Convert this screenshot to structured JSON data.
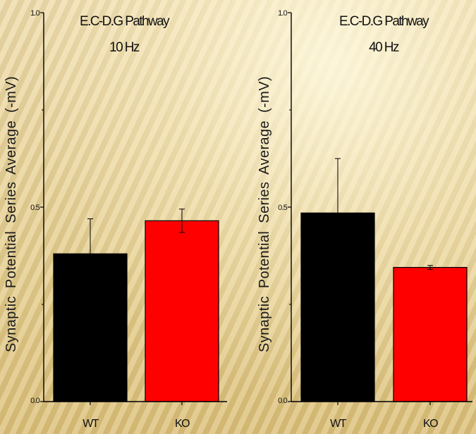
{
  "chart_data": [
    {
      "type": "bar",
      "title_lines": [
        "E.C-D.G Pathway",
        "10 Hz"
      ],
      "ylabel": "Synaptic Potential Series Average (-mV)",
      "xlabel": "",
      "ylim": [
        0,
        1
      ],
      "ytick_labels": [
        "0.0",
        "0.5",
        "1.0"
      ],
      "categories": [
        "WT",
        "KO"
      ],
      "values": [
        0.38,
        0.465
      ],
      "errors": [
        0.09,
        0.03
      ],
      "colors": [
        "#000000",
        "#ff0000"
      ]
    },
    {
      "type": "bar",
      "title_lines": [
        "E.C-D.G Pathway",
        "40 Hz"
      ],
      "ylabel": "Synaptic Potential Series Average (-mV)",
      "xlabel": "",
      "ylim": [
        0,
        1
      ],
      "ytick_labels": [
        "0.0",
        "0.5",
        "1.0"
      ],
      "categories": [
        "WT",
        "KO"
      ],
      "values": [
        0.485,
        0.345
      ],
      "errors": [
        0.14,
        0.005
      ],
      "colors": [
        "#000000",
        "#ff0000"
      ]
    }
  ]
}
